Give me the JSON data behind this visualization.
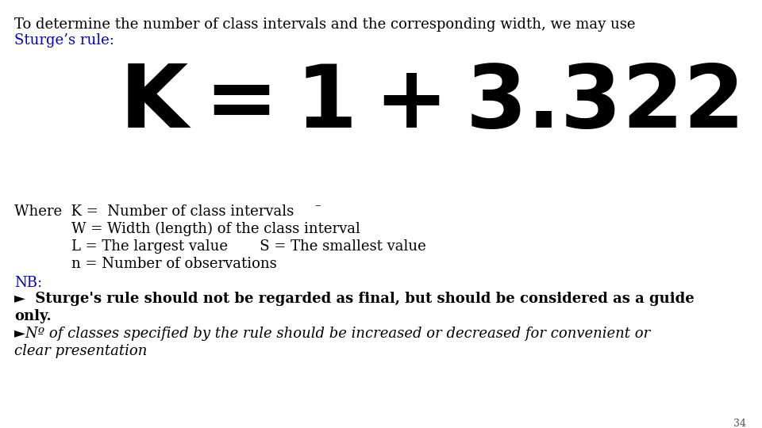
{
  "bg_color": "#ffffff",
  "line1": "To determine the number of class intervals and the corresponding width, we may use",
  "line2": "Sturge’s rule:",
  "line2_color": "#0000cc",
  "page_num": "34",
  "header_fontsize": 13,
  "body_fontsize": 13,
  "formula_fontsize": 80,
  "nb_fontsize": 13,
  "small_fontsize": 9,
  "line1_color": "#000000",
  "body_color": "#000000"
}
